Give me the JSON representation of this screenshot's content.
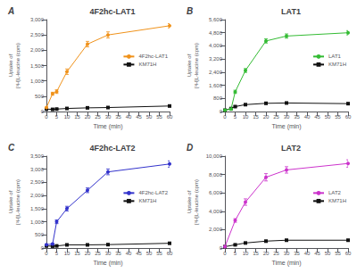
{
  "chart_data": [
    {
      "type": "line",
      "title": "4F2hc-LAT1",
      "annotations": [
        "A"
      ],
      "xlabel": "Time (min)",
      "ylabel": "Uptake of\n[³H]L-leucine (cpm)",
      "x": [
        0,
        3,
        5,
        10,
        20,
        30,
        60
      ],
      "xlim": [
        0,
        60
      ],
      "xticks": [
        0,
        5,
        10,
        15,
        20,
        25,
        30,
        35,
        40,
        45,
        50,
        55,
        60
      ],
      "ylim": [
        0,
        3000
      ],
      "yticks": [
        0,
        500,
        {
          "value": 1000,
          "label": "1,000"
        },
        {
          "value": 1500,
          "label": "1,500"
        },
        {
          "value": 2000,
          "label": "2,000"
        },
        {
          "value": 2500,
          "label": "2,500"
        },
        {
          "value": 3000,
          "label": "3,000"
        }
      ],
      "grid": false,
      "legend": "right",
      "series": [
        {
          "name": "4F2hc-LAT1",
          "color": "#F0921A",
          "marker": "circle",
          "values": [
            130,
            580,
            650,
            1300,
            2200,
            2500,
            2800
          ],
          "errors": [
            20,
            50,
            60,
            90,
            90,
            100,
            70
          ]
        },
        {
          "name": "KM71H",
          "color": "#111111",
          "marker": "square",
          "values": [
            80,
            70,
            80,
            100,
            120,
            130,
            180
          ],
          "errors": [
            15,
            12,
            12,
            15,
            15,
            15,
            20
          ]
        }
      ]
    },
    {
      "type": "line",
      "title": "LAT1",
      "annotations": [
        "B"
      ],
      "xlabel": "Time (min)",
      "ylabel": "Uptake of\n[³H]L-leucine (cpm)",
      "x": [
        0,
        3,
        5,
        10,
        20,
        30,
        60
      ],
      "xlim": [
        0,
        60
      ],
      "xticks": [
        0,
        5,
        10,
        15,
        20,
        25,
        30,
        35,
        40,
        45,
        50,
        55,
        60
      ],
      "ylim": [
        0,
        5600
      ],
      "yticks": [
        0,
        800,
        {
          "value": 1600,
          "label": "1,600"
        },
        {
          "value": 2400,
          "label": "2,400"
        },
        {
          "value": 3200,
          "label": "3,200"
        },
        {
          "value": 4000,
          "label": "4,000"
        },
        {
          "value": 4800,
          "label": "4,800"
        },
        {
          "value": 5600,
          "label": "5,600"
        }
      ],
      "grid": false,
      "legend": "right",
      "series": [
        {
          "name": "LAT1",
          "color": "#33BB33",
          "marker": "circle",
          "values": [
            80,
            150,
            1200,
            2500,
            4300,
            4600,
            4800
          ],
          "errors": [
            20,
            40,
            100,
            120,
            130,
            130,
            130
          ]
        },
        {
          "name": "KM71H",
          "color": "#111111",
          "marker": "square",
          "values": [
            80,
            180,
            300,
            420,
            500,
            520,
            480
          ],
          "errors": [
            15,
            25,
            35,
            40,
            45,
            45,
            45
          ]
        }
      ]
    },
    {
      "type": "line",
      "title": "4F2hc-LAT2",
      "annotations": [
        "C"
      ],
      "xlabel": "Time (min)",
      "ylabel": "Uptake of\n[³H]L-leucine (cpm)",
      "x": [
        0,
        3,
        5,
        10,
        20,
        30,
        60
      ],
      "xlim": [
        0,
        60
      ],
      "xticks": [
        0,
        5,
        10,
        15,
        20,
        25,
        30,
        35,
        40,
        45,
        50,
        55,
        60
      ],
      "ylim": [
        0,
        3500
      ],
      "yticks": [
        0,
        500,
        {
          "value": 1000,
          "label": "1,000"
        },
        {
          "value": 1500,
          "label": "1,500"
        },
        {
          "value": 2000,
          "label": "2,000"
        },
        {
          "value": 2500,
          "label": "2,500"
        },
        {
          "value": 3000,
          "label": "3,000"
        },
        {
          "value": 3500,
          "label": "3,500"
        }
      ],
      "grid": false,
      "legend": "right",
      "series": [
        {
          "name": "4F2hc-LAT2",
          "color": "#3333CC",
          "marker": "circle",
          "values": [
            130,
            150,
            1000,
            1500,
            2200,
            2900,
            3200
          ],
          "errors": [
            20,
            30,
            70,
            90,
            90,
            110,
            120
          ]
        },
        {
          "name": "KM71H",
          "color": "#111111",
          "marker": "square",
          "values": [
            80,
            70,
            80,
            120,
            120,
            130,
            180
          ],
          "errors": [
            12,
            12,
            12,
            18,
            18,
            18,
            22
          ]
        }
      ]
    },
    {
      "type": "line",
      "title": "LAT2",
      "annotations": [
        "D"
      ],
      "xlabel": "Time (min)",
      "ylabel": "Uptake of\n[³H]L-leucine (cpm)",
      "x": [
        0,
        5,
        10,
        20,
        30,
        60
      ],
      "xlim": [
        0,
        60
      ],
      "xticks": [
        0,
        5,
        10,
        15,
        20,
        25,
        30,
        35,
        40,
        45,
        50,
        55,
        60
      ],
      "ylim": [
        0,
        10000
      ],
      "yticks": [
        0,
        {
          "value": 2000,
          "label": "2,000"
        },
        {
          "value": 4000,
          "label": "4,000"
        },
        {
          "value": 6000,
          "label": "6,000"
        },
        {
          "value": 8000,
          "label": "8,000"
        },
        {
          "value": 10000,
          "label": "10,000"
        }
      ],
      "grid": false,
      "legend": "right",
      "series": [
        {
          "name": "LAT2",
          "color": "#CC33CC",
          "marker": "circle",
          "values": [
            150,
            3000,
            5000,
            7700,
            8500,
            9200
          ],
          "errors": [
            40,
            200,
            350,
            400,
            350,
            400
          ]
        },
        {
          "name": "KM71H",
          "color": "#111111",
          "marker": "square",
          "values": [
            150,
            350,
            550,
            750,
            850,
            850
          ],
          "errors": [
            25,
            40,
            50,
            60,
            70,
            70
          ]
        }
      ]
    }
  ]
}
